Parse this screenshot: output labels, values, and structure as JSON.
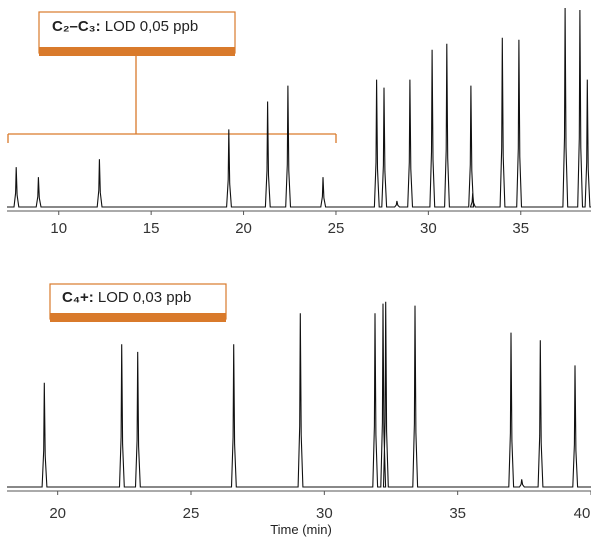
{
  "accent": "#d97a2b",
  "trace_color": "#111111",
  "chart_data": [
    {
      "type": "line",
      "label_bold": "C₂–C₃:",
      "label_text": " LOD 0,05 ppb",
      "xlabel": "",
      "xlim": [
        7.2,
        38.8
      ],
      "ylim": [
        0,
        1
      ],
      "xticks": [
        "10",
        "15",
        "20",
        "25",
        "30",
        "35"
      ],
      "tick_values": [
        10,
        15,
        20,
        25,
        30,
        35
      ],
      "bracket_range": [
        7.2,
        25.0
      ],
      "peaks": [
        {
          "x": 7.7,
          "y": 0.2
        },
        {
          "x": 8.9,
          "y": 0.15
        },
        {
          "x": 12.2,
          "y": 0.24
        },
        {
          "x": 19.2,
          "y": 0.39
        },
        {
          "x": 21.3,
          "y": 0.53
        },
        {
          "x": 22.4,
          "y": 0.61
        },
        {
          "x": 24.3,
          "y": 0.15
        },
        {
          "x": 27.2,
          "y": 0.64
        },
        {
          "x": 27.6,
          "y": 0.6
        },
        {
          "x": 28.3,
          "y": 0.03
        },
        {
          "x": 29.0,
          "y": 0.64
        },
        {
          "x": 30.2,
          "y": 0.79
        },
        {
          "x": 31.0,
          "y": 0.82
        },
        {
          "x": 32.3,
          "y": 0.61
        },
        {
          "x": 32.4,
          "y": 0.07
        },
        {
          "x": 34.0,
          "y": 0.85
        },
        {
          "x": 34.9,
          "y": 0.84
        },
        {
          "x": 37.4,
          "y": 1.0
        },
        {
          "x": 38.2,
          "y": 0.99
        },
        {
          "x": 38.6,
          "y": 0.64
        }
      ]
    },
    {
      "type": "line",
      "label_bold": "C₄+:",
      "label_text": " LOD 0,03 ppb",
      "xlabel": "Time (min)",
      "xlim": [
        18.1,
        40.0
      ],
      "ylim": [
        0,
        1
      ],
      "xticks": [
        "20",
        "25",
        "30",
        "35",
        "40"
      ],
      "tick_values": [
        20,
        25,
        30,
        35,
        40
      ],
      "peaks": [
        {
          "x": 19.5,
          "y": 0.54
        },
        {
          "x": 22.4,
          "y": 0.74
        },
        {
          "x": 23.0,
          "y": 0.7
        },
        {
          "x": 26.6,
          "y": 0.74
        },
        {
          "x": 29.1,
          "y": 0.9
        },
        {
          "x": 31.9,
          "y": 0.9
        },
        {
          "x": 32.2,
          "y": 0.95
        },
        {
          "x": 32.3,
          "y": 0.96
        },
        {
          "x": 33.4,
          "y": 0.94
        },
        {
          "x": 37.0,
          "y": 0.8
        },
        {
          "x": 37.4,
          "y": 0.04
        },
        {
          "x": 38.1,
          "y": 0.76
        },
        {
          "x": 39.4,
          "y": 0.63
        }
      ]
    }
  ]
}
